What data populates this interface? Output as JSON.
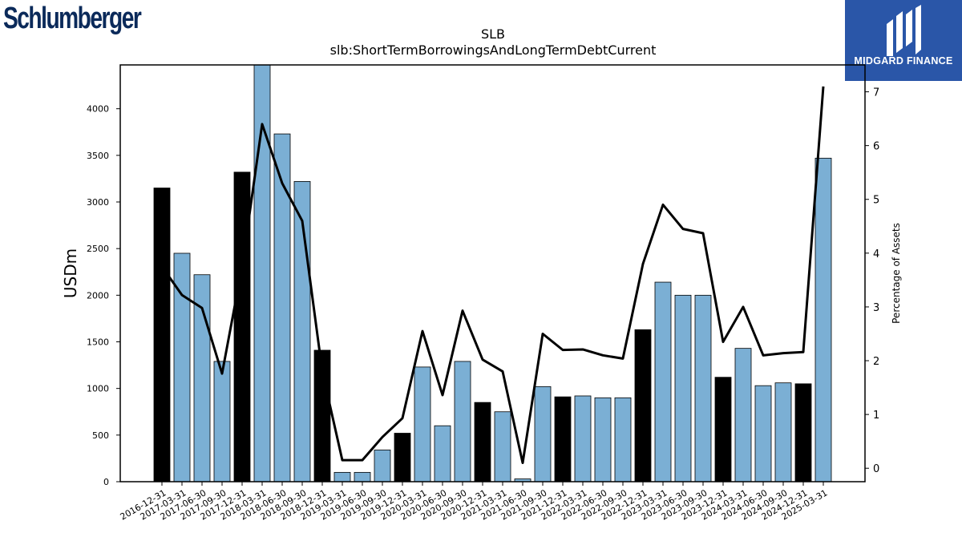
{
  "header": {
    "company_logo_text": "Schlumberger",
    "brand_name": "MIDGARD FINANCE"
  },
  "colors": {
    "annual_bar": "#000000",
    "quarterly_bar": "#7bafd4",
    "line": "#000000",
    "brand_bg": "#2a56a8"
  },
  "chart_data": {
    "type": "bar",
    "title": "SLB",
    "subtitle": "slb:ShortTermBorrowingsAndLongTermDebtCurrent",
    "ylabel": "USDm",
    "y2label": "Percentage of Assets",
    "ylim": [
      0,
      4470
    ],
    "y2lim": [
      -0.25,
      7.5
    ],
    "yticks": [
      0,
      500,
      1000,
      1500,
      2000,
      2500,
      3000,
      3500,
      4000
    ],
    "y2ticks": [
      0,
      1,
      2,
      3,
      4,
      5,
      6,
      7
    ],
    "categories": [
      "2016-12-31",
      "2017-03-31",
      "2017-06-30",
      "2017-09-30",
      "2017-12-31",
      "2018-03-31",
      "2018-06-30",
      "2018-09-30",
      "2018-12-31",
      "2019-03-31",
      "2019-06-30",
      "2019-09-30",
      "2019-12-31",
      "2020-03-31",
      "2020-06-30",
      "2020-09-30",
      "2020-12-31",
      "2021-03-31",
      "2021-06-30",
      "2021-09-30",
      "2021-12-31",
      "2022-03-31",
      "2022-06-30",
      "2022-09-30",
      "2022-12-31",
      "2023-03-31",
      "2023-06-30",
      "2023-09-30",
      "2023-12-31",
      "2024-03-31",
      "2024-06-30",
      "2024-09-30",
      "2024-12-31",
      "2025-03-31"
    ],
    "series": [
      {
        "kind": "bar",
        "values": [
          3150,
          2450,
          2220,
          1290,
          3320,
          4470,
          3730,
          3220,
          1410,
          100,
          100,
          340,
          520,
          1230,
          600,
          1290,
          850,
          750,
          30,
          1020,
          910,
          920,
          900,
          900,
          1630,
          2140,
          2000,
          2000,
          1120,
          1430,
          1030,
          1060,
          1050,
          3470
        ],
        "annual": [
          true,
          false,
          false,
          false,
          true,
          false,
          false,
          false,
          true,
          false,
          false,
          false,
          true,
          false,
          false,
          false,
          true,
          false,
          false,
          false,
          true,
          false,
          false,
          false,
          true,
          false,
          false,
          false,
          true,
          false,
          false,
          false,
          true,
          false
        ]
      },
      {
        "kind": "line",
        "axis": "right",
        "values": [
          3.75,
          3.22,
          2.98,
          1.76,
          3.75,
          6.4,
          5.3,
          4.6,
          1.8,
          0.15,
          0.15,
          0.58,
          0.93,
          2.55,
          1.36,
          2.93,
          2.02,
          1.8,
          0.1,
          2.5,
          2.2,
          2.21,
          2.1,
          2.04,
          3.8,
          4.9,
          4.45,
          4.37,
          2.35,
          3.0,
          2.1,
          2.14,
          2.16,
          7.1
        ]
      }
    ]
  }
}
